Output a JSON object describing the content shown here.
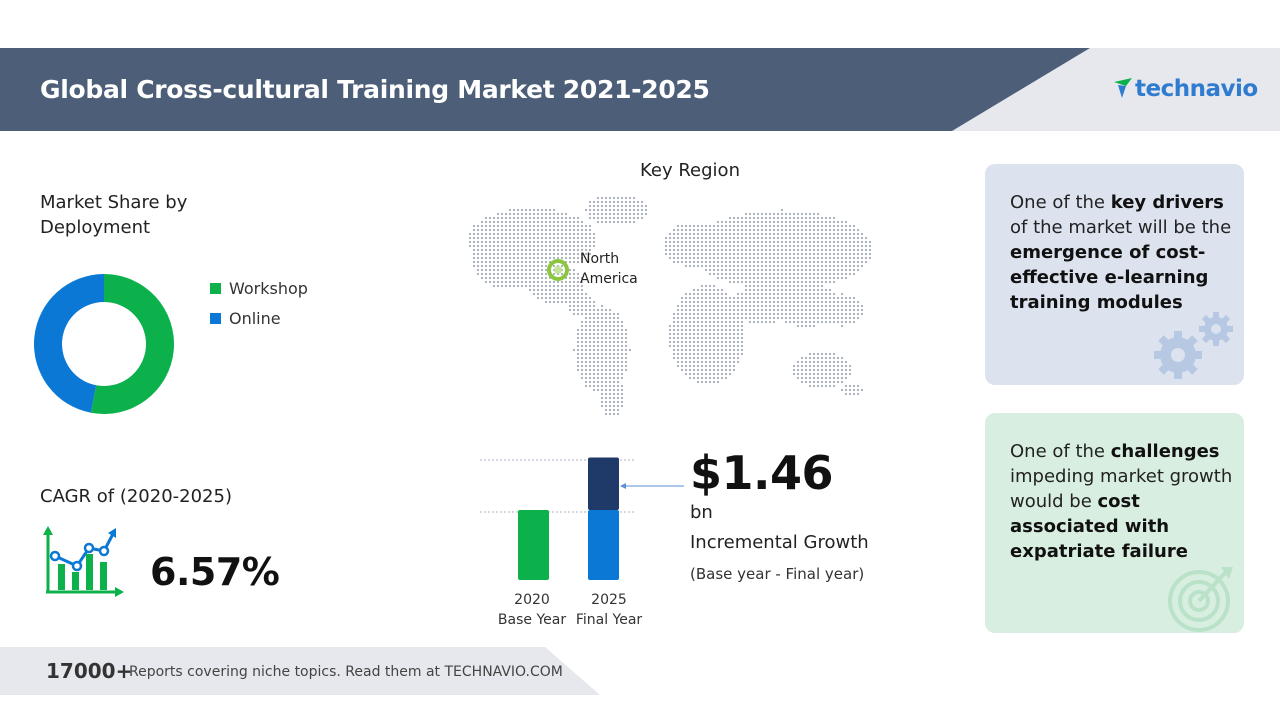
{
  "header": {
    "title": "Global Cross-cultural Training Market 2021-2025",
    "logo_text": "technavio",
    "logo_icon": "technavio-logo-icon"
  },
  "market_share": {
    "title": "Market Share by Deployment",
    "legend": [
      {
        "label": "Workshop",
        "color": "#0db14b"
      },
      {
        "label": "Online",
        "color": "#0a78d4"
      }
    ]
  },
  "cagr": {
    "label": "CAGR of (2020-2025)",
    "value": "6.57%",
    "icon": "growth-chart-icon"
  },
  "region": {
    "title": "Key Region",
    "highlight": "North America",
    "marker_color": "#8cc63f"
  },
  "growth": {
    "value": "$1.46",
    "unit": "bn",
    "label": "Incremental Growth",
    "period": "(Base year - Final year)"
  },
  "years": [
    {
      "year": "2020",
      "label": "Base Year"
    },
    {
      "year": "2025",
      "label": "Final Year"
    }
  ],
  "drivers": {
    "icon": "gears-icon"
  },
  "challenges": {
    "icon": "target-icon"
  },
  "footer": {
    "count": "17000+",
    "text": "Reports covering niche topics. Read them at TECHNAVIO.COM"
  },
  "colors": {
    "header": "#4d5f78",
    "green": "#0db14b",
    "blue": "#0a78d4",
    "navy": "#1f3a68",
    "drivers_card": "#dce3ee",
    "challenges_card": "#d8eee0"
  },
  "chart_data": [
    {
      "type": "pie",
      "title": "Market Share by Deployment",
      "series": [
        {
          "name": "Workshop",
          "value": 53
        },
        {
          "name": "Online",
          "value": 47
        }
      ]
    },
    {
      "type": "bar",
      "categories": [
        "2020",
        "2025"
      ],
      "series": [
        {
          "name": "Base",
          "values": [
            1.0,
            1.0
          ]
        },
        {
          "name": "Incremental Growth",
          "values": [
            0,
            0.75
          ]
        }
      ]
    }
  ]
}
